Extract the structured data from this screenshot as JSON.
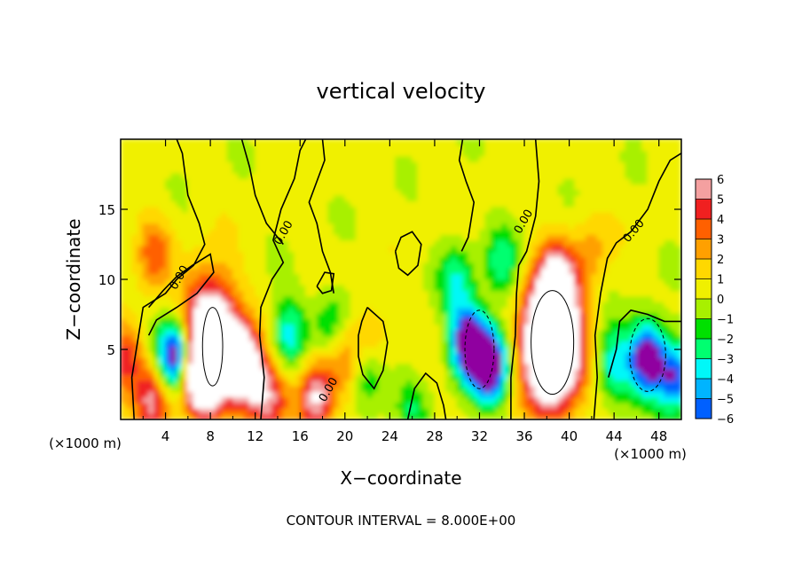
{
  "chart_data": {
    "type": "heatmap",
    "title": "vertical velocity",
    "xlabel": "X−coordinate",
    "ylabel": "Z−coordinate",
    "xlim": [
      0,
      50
    ],
    "ylim": [
      0,
      20
    ],
    "x_ticks": [
      "4",
      "8",
      "12",
      "16",
      "20",
      "24",
      "28",
      "32",
      "36",
      "40",
      "44",
      "48"
    ],
    "y_ticks": [
      "5",
      "10",
      "15"
    ],
    "x_unit_left": "(×1000 m)",
    "x_unit_right": "(×1000 m)",
    "footer": "CONTOUR INTERVAL = 8.000E+00",
    "contour_labels": [
      "0.00",
      "0.00",
      "0.00",
      "0.00",
      "0.00"
    ],
    "colorbar": {
      "ticks": [
        "6",
        "5",
        "4",
        "3",
        "2",
        "1",
        "0",
        "−1",
        "−2",
        "−3",
        "−4",
        "−5",
        "−6"
      ],
      "colors": [
        "#ffffff",
        "#f4a0a0",
        "#f02020",
        "#ff6000",
        "#ffa000",
        "#ffd800",
        "#f0f000",
        "#a8f000",
        "#00e000",
        "#00ff70",
        "#00f8f8",
        "#00b4ff",
        "#0060ff",
        "#0000f0",
        "#0000b0",
        "#9000a0"
      ]
    },
    "blobs": [
      {
        "x": 5,
        "z": 4.5,
        "w": -10
      },
      {
        "x": 3,
        "z": 1.5,
        "w": 5
      },
      {
        "x": 3,
        "z": 12,
        "w": 3
      },
      {
        "x": 8,
        "z": 5.5,
        "w": 12
      },
      {
        "x": 7,
        "z": 3,
        "w": 6
      },
      {
        "x": 11,
        "z": 4,
        "w": 7
      },
      {
        "x": 12,
        "z": 2,
        "w": 3
      },
      {
        "x": 15,
        "z": 6,
        "w": -4
      },
      {
        "x": 13.5,
        "z": 1.5,
        "w": 4
      },
      {
        "x": 17.5,
        "z": 1.8,
        "w": 6
      },
      {
        "x": 20,
        "z": 4.5,
        "w": 3
      },
      {
        "x": 19,
        "z": 7,
        "w": -3
      },
      {
        "x": 22,
        "z": 3,
        "w": -3
      },
      {
        "x": 31,
        "z": 5.5,
        "w": -8
      },
      {
        "x": 33,
        "z": 4,
        "w": -9
      },
      {
        "x": 30,
        "z": 10,
        "w": -3
      },
      {
        "x": 34,
        "z": 11,
        "w": -3
      },
      {
        "x": 38.5,
        "z": 5.5,
        "w": 16
      },
      {
        "x": 39,
        "z": 10,
        "w": 5
      },
      {
        "x": 42,
        "z": 12,
        "w": 2
      },
      {
        "x": 47,
        "z": 4.5,
        "w": -8
      },
      {
        "x": 44,
        "z": 4,
        "w": -4
      },
      {
        "x": 49.5,
        "z": 3,
        "w": -6
      },
      {
        "x": 0.5,
        "z": 4.5,
        "w": 4
      },
      {
        "x": 22.5,
        "z": 6,
        "w": 2
      },
      {
        "x": 26,
        "z": 1,
        "w": -2
      }
    ]
  }
}
